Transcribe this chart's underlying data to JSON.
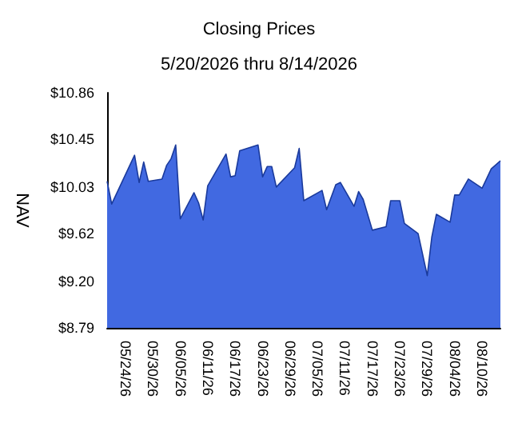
{
  "chart_data": {
    "type": "area",
    "title": "Closing Prices",
    "subtitle": "5/20/2026 thru 8/14/2026",
    "ylabel": "NAV",
    "x": [
      "2026-05-20",
      "2026-05-21",
      "2026-05-26",
      "2026-05-27",
      "2026-05-28",
      "2026-05-29",
      "2026-06-01",
      "2026-06-02",
      "2026-06-03",
      "2026-06-04",
      "2026-06-05",
      "2026-06-08",
      "2026-06-09",
      "2026-06-10",
      "2026-06-11",
      "2026-06-15",
      "2026-06-16",
      "2026-06-17",
      "2026-06-18",
      "2026-06-22",
      "2026-06-23",
      "2026-06-24",
      "2026-06-25",
      "2026-06-26",
      "2026-06-30",
      "2026-07-01",
      "2026-07-02",
      "2026-07-06",
      "2026-07-07",
      "2026-07-09",
      "2026-07-10",
      "2026-07-13",
      "2026-07-14",
      "2026-07-15",
      "2026-07-17",
      "2026-07-20",
      "2026-07-21",
      "2026-07-23",
      "2026-07-24",
      "2026-07-27",
      "2026-07-29",
      "2026-07-30",
      "2026-07-31",
      "2026-08-03",
      "2026-08-04",
      "2026-08-05",
      "2026-08-07",
      "2026-08-10",
      "2026-08-12",
      "2026-08-14"
    ],
    "series": [
      {
        "color": "#4169e1",
        "values": [
          10.08,
          9.88,
          10.31,
          10.07,
          10.25,
          10.08,
          10.1,
          10.22,
          10.28,
          10.4,
          9.75,
          9.98,
          9.89,
          9.74,
          10.04,
          10.32,
          10.12,
          10.13,
          10.35,
          10.4,
          10.12,
          10.21,
          10.21,
          10.03,
          10.2,
          10.37,
          9.91,
          10.0,
          9.83,
          10.05,
          10.07,
          9.86,
          9.99,
          9.92,
          9.65,
          9.68,
          9.91,
          9.91,
          9.71,
          9.62,
          9.25,
          9.59,
          9.79,
          9.72,
          9.96,
          9.96,
          10.1,
          10.02,
          10.19,
          10.26
        ]
      }
    ],
    "xlim": [
      "2026-05-20",
      "2026-08-14"
    ],
    "xticks": [
      {
        "value": "2026-05-24",
        "label": "05/24/26"
      },
      {
        "value": "2026-05-30",
        "label": "05/30/26"
      },
      {
        "value": "2026-06-05",
        "label": "06/05/26"
      },
      {
        "value": "2026-06-11",
        "label": "06/11/26"
      },
      {
        "value": "2026-06-17",
        "label": "06/17/26"
      },
      {
        "value": "2026-06-23",
        "label": "06/23/26"
      },
      {
        "value": "2026-06-29",
        "label": "06/29/26"
      },
      {
        "value": "2026-07-05",
        "label": "07/05/26"
      },
      {
        "value": "2026-07-11",
        "label": "07/11/26"
      },
      {
        "value": "2026-07-17",
        "label": "07/17/26"
      },
      {
        "value": "2026-07-23",
        "label": "07/23/26"
      },
      {
        "value": "2026-07-29",
        "label": "07/29/26"
      },
      {
        "value": "2026-08-04",
        "label": "08/04/26"
      },
      {
        "value": "2026-08-10",
        "label": "08/10/26"
      }
    ],
    "ylim": [
      8.79,
      10.86
    ],
    "yticks": [
      {
        "value": 8.79,
        "label": "$8.79"
      },
      {
        "value": 9.2,
        "label": "$9.20"
      },
      {
        "value": 9.62,
        "label": "$9.62"
      },
      {
        "value": 10.03,
        "label": "$10.03"
      },
      {
        "value": 10.45,
        "label": "$10.45"
      },
      {
        "value": 10.86,
        "label": "$10.86"
      }
    ],
    "grid": false,
    "marker": "none"
  }
}
